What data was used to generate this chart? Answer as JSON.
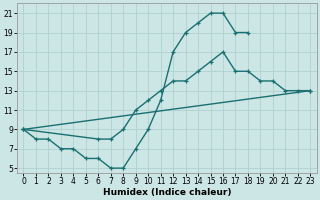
{
  "title": "",
  "xlabel": "Humidex (Indice chaleur)",
  "bg_color": "#cce5e5",
  "grid_color": "#b0d0d0",
  "line_color": "#1a7070",
  "line1_x": [
    0,
    1,
    2,
    3,
    4,
    5,
    6,
    7,
    8,
    9,
    10,
    11,
    12,
    13,
    14,
    15,
    16,
    17,
    18
  ],
  "line1_y": [
    9,
    8,
    8,
    7,
    7,
    6,
    6,
    5,
    5,
    7,
    9,
    12,
    17,
    19,
    20,
    21,
    21,
    19,
    19
  ],
  "line2_x": [
    0,
    6,
    7,
    8,
    9,
    10,
    11,
    12,
    13,
    14,
    15,
    16,
    17,
    18,
    19,
    20,
    21,
    22,
    23
  ],
  "line2_y": [
    9,
    8,
    8,
    9,
    11,
    12,
    13,
    14,
    14,
    15,
    16,
    17,
    15,
    15,
    14,
    14,
    13,
    13,
    13
  ],
  "line3_x": [
    0,
    23
  ],
  "line3_y": [
    9,
    13
  ],
  "yticks": [
    5,
    7,
    9,
    11,
    13,
    15,
    17,
    19,
    21
  ],
  "xticks": [
    0,
    1,
    2,
    3,
    4,
    5,
    6,
    7,
    8,
    9,
    10,
    11,
    12,
    13,
    14,
    15,
    16,
    17,
    18,
    19,
    20,
    21,
    22,
    23
  ],
  "xlim": [
    -0.5,
    23.5
  ],
  "ylim": [
    4.5,
    22
  ]
}
